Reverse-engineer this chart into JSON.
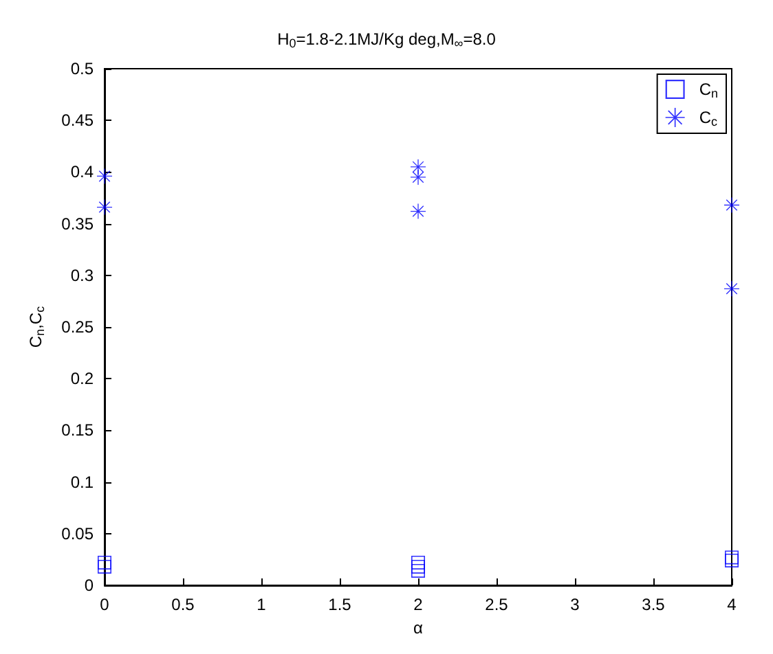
{
  "chart_data": {
    "type": "scatter",
    "title": "H$_{0}$=1.8-2.1MJ/Kg deg,M$_{∞}$=8.0",
    "xlabel": "α",
    "ylabel": "C$_{n}$,C$_{c}$",
    "xlim": [
      0,
      4
    ],
    "xticks": [
      0,
      0.5,
      1,
      1.5,
      2,
      2.5,
      3,
      3.5,
      4
    ],
    "ylim": [
      0,
      0.5
    ],
    "yticks": [
      0,
      0.05,
      0.1,
      0.15,
      0.2,
      0.25,
      0.3,
      0.35,
      0.4,
      0.45,
      0.5
    ],
    "grid": false,
    "legend": "top right",
    "series": [
      {
        "name": "C$_{n}$",
        "color": "#0000ff",
        "marker": "square",
        "x": [
          0,
          0,
          2,
          2,
          2,
          4,
          4
        ],
        "values": [
          0.018,
          0.022,
          0.014,
          0.018,
          0.022,
          0.024,
          0.027
        ]
      },
      {
        "name": "C$_{c}$",
        "color": "#0000ff",
        "marker": "star",
        "x": [
          0,
          0,
          2,
          2,
          2,
          4,
          4
        ],
        "values": [
          0.396,
          0.366,
          0.405,
          0.395,
          0.362,
          0.368,
          0.287
        ]
      }
    ]
  }
}
